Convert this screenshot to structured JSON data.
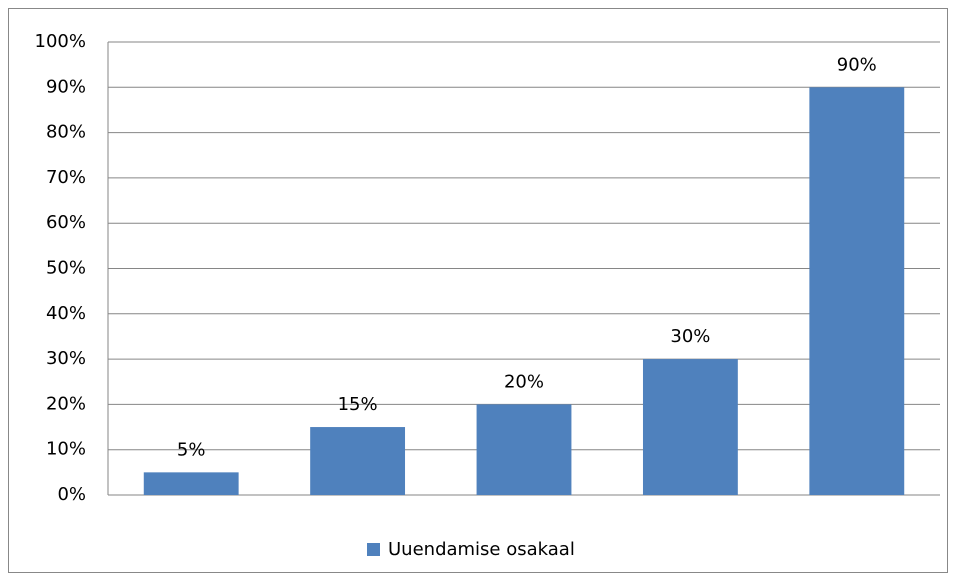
{
  "chart_data": {
    "type": "bar",
    "categories": [
      null,
      null,
      null,
      null,
      null
    ],
    "series": [
      {
        "name": "Uuendamise osakaal",
        "color": "#4f81bd",
        "values": [
          5,
          15,
          20,
          30,
          90
        ],
        "value_labels": [
          "5%",
          "15%",
          "20%",
          "30%",
          "90%"
        ]
      }
    ],
    "ylim": [
      0,
      100
    ],
    "yticks": [
      {
        "value": 0,
        "label": "0%"
      },
      {
        "value": 10,
        "label": "10%"
      },
      {
        "value": 20,
        "label": "20%"
      },
      {
        "value": 30,
        "label": "30%"
      },
      {
        "value": 40,
        "label": "40%"
      },
      {
        "value": 50,
        "label": "50%"
      },
      {
        "value": 60,
        "label": "60%"
      },
      {
        "value": 70,
        "label": "70%"
      },
      {
        "value": 80,
        "label": "80%"
      },
      {
        "value": 90,
        "label": "90%"
      },
      {
        "value": 100,
        "label": "100%"
      }
    ],
    "grid": true,
    "legend": "bottom"
  }
}
